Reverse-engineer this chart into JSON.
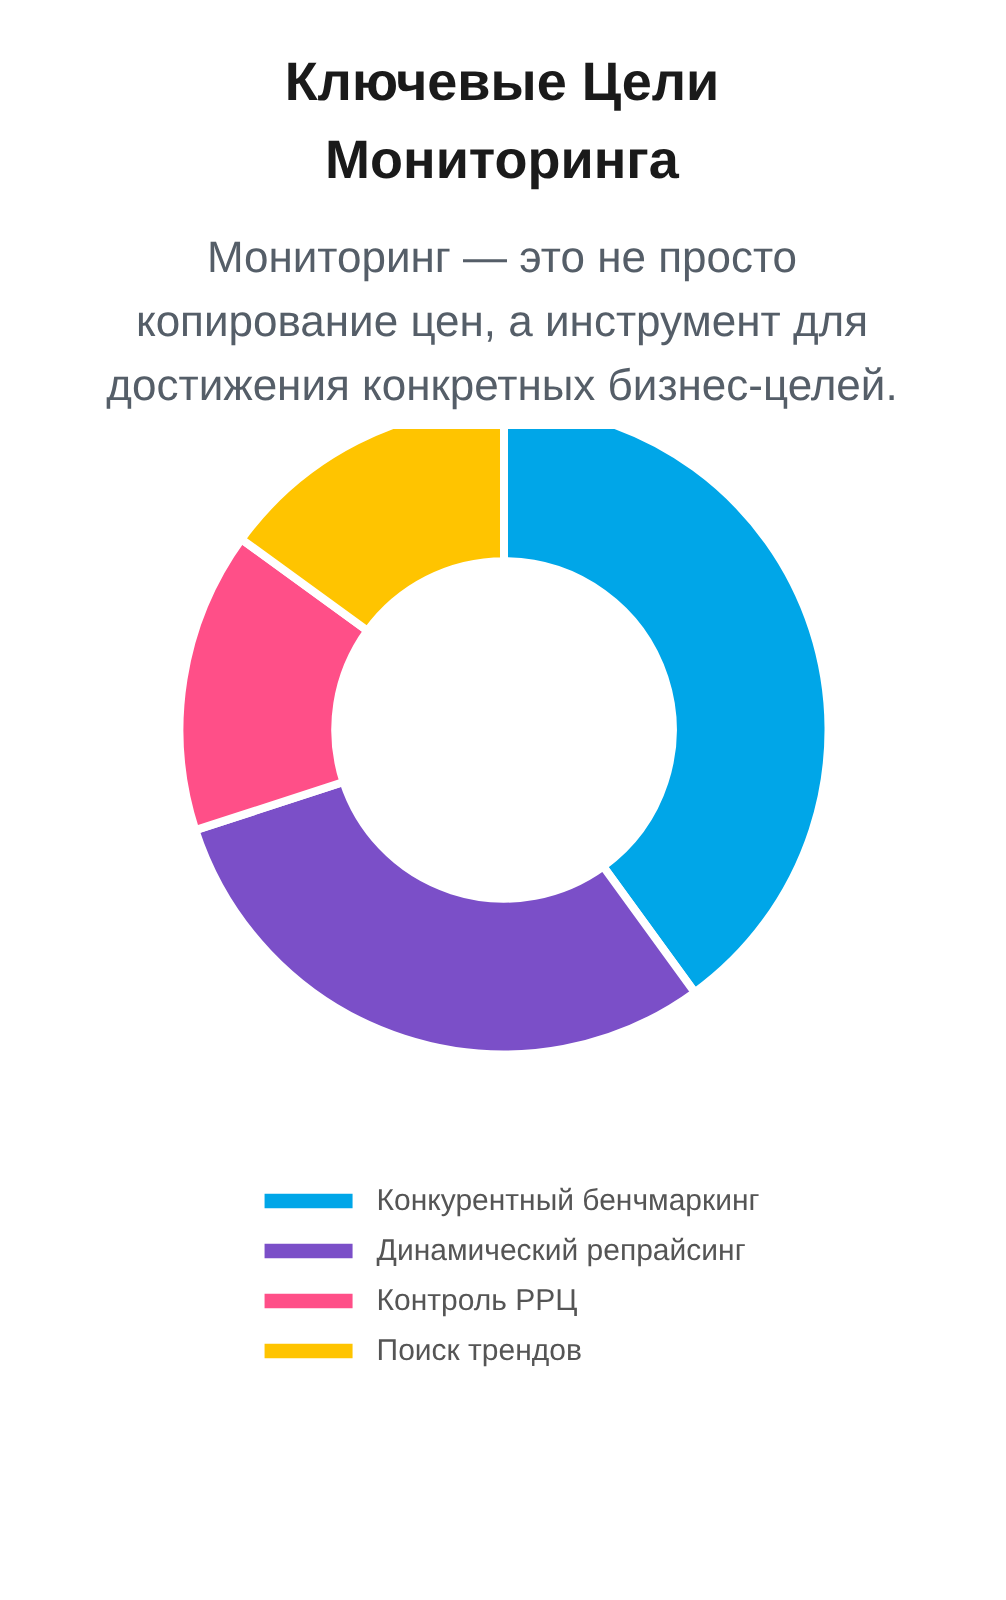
{
  "chart_data": {
    "type": "donut",
    "title": "Ключевые Цели Мониторинга",
    "subtitle": "Мониторинг — это не просто копирование цен, а инструмент для достижения конкретных бизнес-целей.",
    "categories": [
      "Конкурентный бенчмаркинг",
      "Динамический репрайсинг",
      "Контроль РРЦ",
      "Поиск трендов"
    ],
    "values": [
      40,
      30,
      15,
      15
    ],
    "colors": [
      "#00a6e8",
      "#7b4fc8",
      "#ff4f88",
      "#ffc400"
    ],
    "legend": "bottom"
  }
}
